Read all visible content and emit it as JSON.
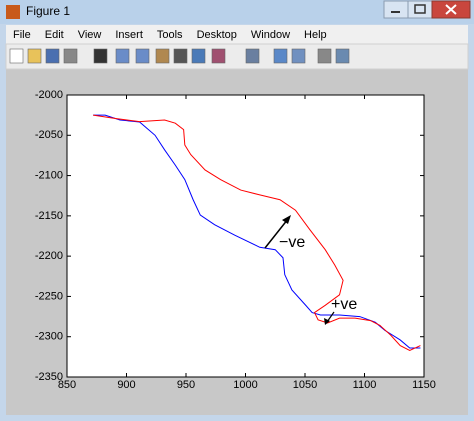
{
  "window": {
    "title": "Figure 1",
    "menu": [
      "File",
      "Edit",
      "View",
      "Insert",
      "Tools",
      "Desktop",
      "Window",
      "Help"
    ]
  },
  "chart_data": {
    "type": "line",
    "annotations": [
      "−ve",
      "+ve"
    ],
    "series": [
      {
        "color": "#0000ff",
        "x": [
          872,
          882,
          894.5,
          911,
          924,
          932,
          941,
          949,
          956,
          962,
          974,
          991,
          1012,
          1025,
          1031.5,
          1033,
          1039,
          1050,
          1056,
          1063,
          1079,
          1096,
          1109,
          1117,
          1130,
          1138,
          1147
        ],
        "values": [
          -2025,
          -2025,
          -2031,
          -2033.5,
          -2050,
          -2068,
          -2087,
          -2105,
          -2130,
          -2149,
          -2161,
          -2174,
          -2189,
          -2192,
          -2202,
          -2223,
          -2242,
          -2260,
          -2270,
          -2273,
          -2273,
          -2275,
          -2282,
          -2292,
          -2304,
          -2314,
          -2314
        ]
      },
      {
        "color": "#ff0000",
        "x": [
          872,
          890,
          911,
          932,
          941,
          948,
          949,
          954,
          966,
          979,
          996,
          1012,
          1029,
          1042,
          1054,
          1067,
          1075,
          1082,
          1079,
          1067,
          1058,
          1061,
          1069,
          1079,
          1092,
          1105,
          1113,
          1122,
          1130,
          1138,
          1147
        ],
        "values": [
          -2025,
          -2029,
          -2033,
          -2031,
          -2035,
          -2043,
          -2062,
          -2074,
          -2093,
          -2105,
          -2118,
          -2124,
          -2130,
          -2143,
          -2167,
          -2192,
          -2211,
          -2230,
          -2248,
          -2261,
          -2270,
          -2279,
          -2283,
          -2277,
          -2277,
          -2280,
          -2286,
          -2298,
          -2311,
          -2317,
          -2311
        ]
      }
    ],
    "xlim": [
      850,
      1150
    ],
    "xticks": [
      850,
      900,
      950,
      1000,
      1050,
      1100,
      1150
    ],
    "ylim": [
      -2350,
      -2000
    ],
    "yticks": [
      -2000,
      -2050,
      -2100,
      -2150,
      -2200,
      -2250,
      -2300,
      -2350
    ]
  }
}
